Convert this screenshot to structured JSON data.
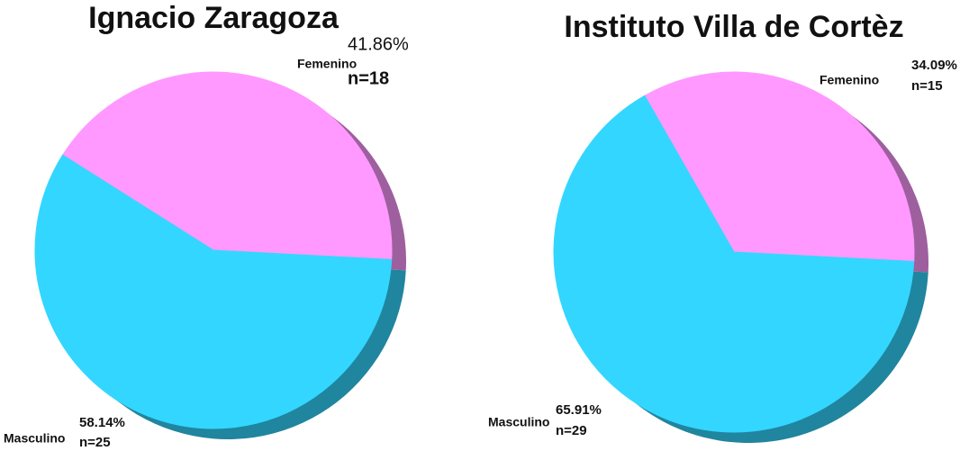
{
  "chart_data": [
    {
      "type": "pie",
      "title": "Ignacio Zaragoza",
      "categories": [
        "Femenino",
        "Masculino"
      ],
      "values": [
        41.86,
        58.14
      ],
      "value_labels": [
        "41.86%",
        "58.14%"
      ],
      "counts": [
        18,
        25
      ],
      "count_labels": [
        "n=18",
        "n=25"
      ],
      "colors": [
        "#ff99ff",
        "#33d6ff"
      ]
    },
    {
      "type": "pie",
      "title": "Instituto Villa de Cortèz",
      "categories": [
        "Femenino",
        "Masculino"
      ],
      "values": [
        34.09,
        65.91
      ],
      "value_labels": [
        "34.09%",
        "65.91%"
      ],
      "counts": [
        15,
        29
      ],
      "count_labels": [
        "n=15",
        "n=29"
      ],
      "colors": [
        "#ff99ff",
        "#33d6ff"
      ]
    }
  ]
}
